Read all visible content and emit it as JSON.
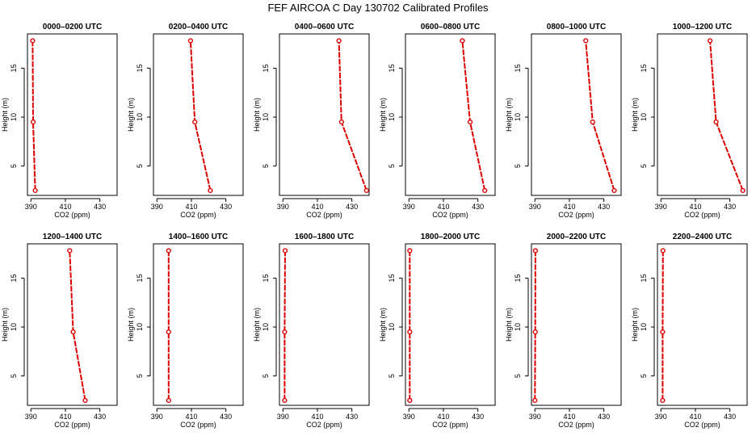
{
  "chart_data": {
    "type": "line",
    "title": "FEF AIRCOA C  Day 130702  Calibrated Profiles",
    "xlabel": "CO2 (ppm)",
    "ylabel": "Height (m)",
    "xlim": [
      388,
      440
    ],
    "ylim": [
      2,
      18.5
    ],
    "xticks": [
      "390",
      "410",
      "430"
    ],
    "yticks": [
      "5",
      "10",
      "15"
    ],
    "heights": [
      2.5,
      9.5,
      17.8
    ],
    "grid": false,
    "legend": "none",
    "panels": [
      {
        "title": "0000–0200 UTC",
        "co2": [
          392.5,
          391.3,
          391.0
        ]
      },
      {
        "title": "0200–0400 UTC",
        "co2": [
          421.0,
          412.0,
          409.5
        ]
      },
      {
        "title": "0400–0600 UTC",
        "co2": [
          438.5,
          424.0,
          422.5
        ]
      },
      {
        "title": "0600–0800 UTC",
        "co2": [
          434.0,
          425.5,
          421.0
        ]
      },
      {
        "title": "0800–1000 UTC",
        "co2": [
          436.0,
          423.5,
          419.5
        ]
      },
      {
        "title": "1000–1200 UTC",
        "co2": [
          437.5,
          422.0,
          418.5
        ]
      },
      {
        "title": "1200–1400 UTC",
        "co2": [
          421.5,
          414.5,
          412.5
        ]
      },
      {
        "title": "1400–1600 UTC",
        "co2": [
          396.8,
          396.8,
          396.8
        ]
      },
      {
        "title": "1600–1800 UTC",
        "co2": [
          391.0,
          391.0,
          391.3
        ]
      },
      {
        "title": "1800–2000 UTC",
        "co2": [
          390.5,
          390.5,
          390.5
        ]
      },
      {
        "title": "2000–2200 UTC",
        "co2": [
          390.0,
          390.2,
          390.3
        ]
      },
      {
        "title": "2200–2400 UTC",
        "co2": [
          391.0,
          391.0,
          391.2
        ]
      }
    ]
  }
}
